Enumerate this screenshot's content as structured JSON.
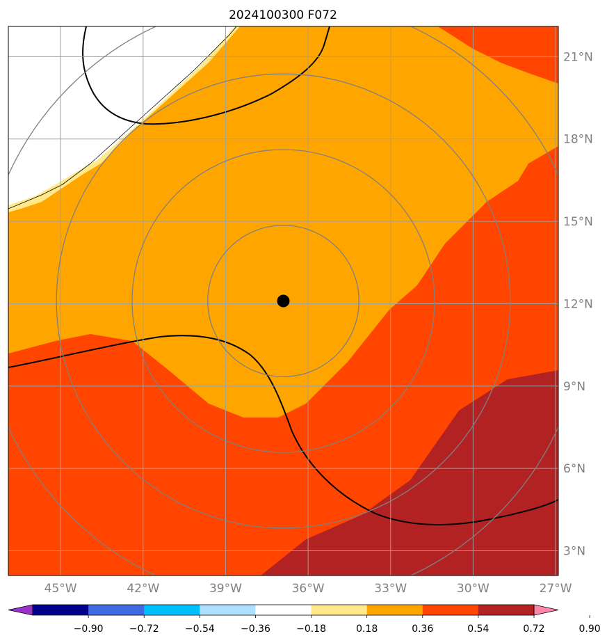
{
  "chart_data": {
    "type": "heatmap",
    "title": "2024100300 F072",
    "x_ticks": [
      "45°W",
      "42°W",
      "39°W",
      "36°W",
      "33°W",
      "30°W",
      "27°W"
    ],
    "y_ticks": [
      "21°N",
      "18°N",
      "15°N",
      "12°N",
      "9°N",
      "6°N",
      "3°N"
    ],
    "x_tick_values": [
      -45,
      -42,
      -39,
      -36,
      -33,
      -30,
      -27
    ],
    "y_tick_values": [
      21,
      18,
      15,
      12,
      9,
      6,
      3
    ],
    "lon_range": [
      -46.9,
      -26.9
    ],
    "lat_range": [
      2.1,
      22.1
    ],
    "grid": true,
    "storm_center": {
      "lon": -36.9,
      "lat": 12.1
    },
    "range_rings_deg": [
      2.75,
      5.5,
      8.25,
      11.0
    ],
    "colorbar": {
      "levels": [
        -0.9,
        -0.72,
        -0.54,
        -0.36,
        -0.18,
        0.18,
        0.36,
        0.54,
        0.72,
        0.9
      ],
      "labels": [
        "−0.90",
        "−0.72",
        "−0.54",
        "−0.36",
        "−0.18",
        "0.18",
        "0.36",
        "0.54",
        "0.72",
        "0.90"
      ],
      "colors": [
        "#9932cc",
        "#00008b",
        "#4169e1",
        "#00bfff",
        "#b0e0ff",
        "#ffffff",
        "#ffe98a",
        "#ffa500",
        "#ff4500",
        "#b22222",
        "#ff88aa"
      ],
      "extend": "both"
    },
    "fill_colors": {
      "white": "#ffffff",
      "light_yellow": "#ffe98a",
      "orange": "#ffa500",
      "orange_red": "#ff4500",
      "dark_red": "#b22222"
    }
  }
}
